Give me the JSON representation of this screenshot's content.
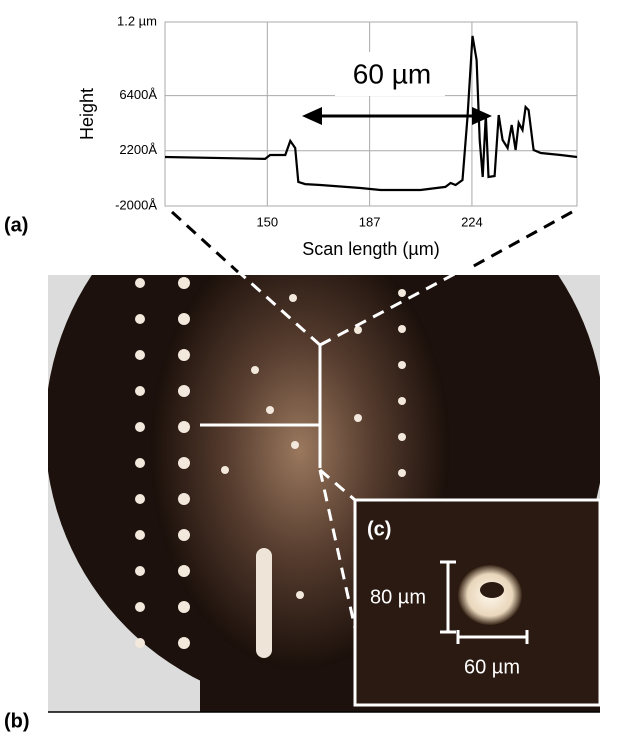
{
  "chart_data": {
    "type": "line",
    "x_label": "Scan length (µm)",
    "y_label": "Height",
    "xlim": [
      113,
      262
    ],
    "xticks": [
      150,
      187,
      224
    ],
    "ylim": [
      -2000,
      12000
    ],
    "yticks": [
      {
        "value": 12000,
        "label": "1.2 µm"
      },
      {
        "value": 6400,
        "label": "6400Å"
      },
      {
        "value": 2200,
        "label": "2200Å"
      },
      {
        "value": -2000,
        "label": "-2000Å"
      }
    ],
    "grid": true,
    "x": [
      113,
      149.2,
      151,
      156.5,
      158.3,
      160.1,
      161.2,
      163.7,
      169.2,
      183.7,
      190.9,
      205.4,
      214.4,
      216.3,
      218.1,
      220.6,
      222.4,
      224.2,
      225.7,
      226.8,
      227.9,
      229,
      230,
      232.2,
      233.7,
      235.1,
      236.9,
      238.4,
      239.8,
      240.9,
      242.3,
      243.4,
      244.5,
      246.3,
      248.9,
      256.1,
      262
    ],
    "series": [
      {
        "color": "#000000",
        "values": [
          1730,
          1580,
          1880,
          1880,
          2950,
          2410,
          -170,
          -330,
          -400,
          -630,
          -780,
          -780,
          -550,
          -250,
          -400,
          -20,
          4770,
          10940,
          9110,
          3020,
          210,
          4920,
          210,
          280,
          4920,
          3020,
          2410,
          4160,
          2260,
          4320,
          3780,
          5530,
          5300,
          2260,
          2030,
          1880,
          1730
        ]
      }
    ],
    "annotations": {
      "arrow": "60 µm",
      "panel_a": "(a)",
      "panel_b": "(b)",
      "panel_c": "(c)",
      "scale_height": "80 µm",
      "scale_width": "60 µm"
    }
  }
}
